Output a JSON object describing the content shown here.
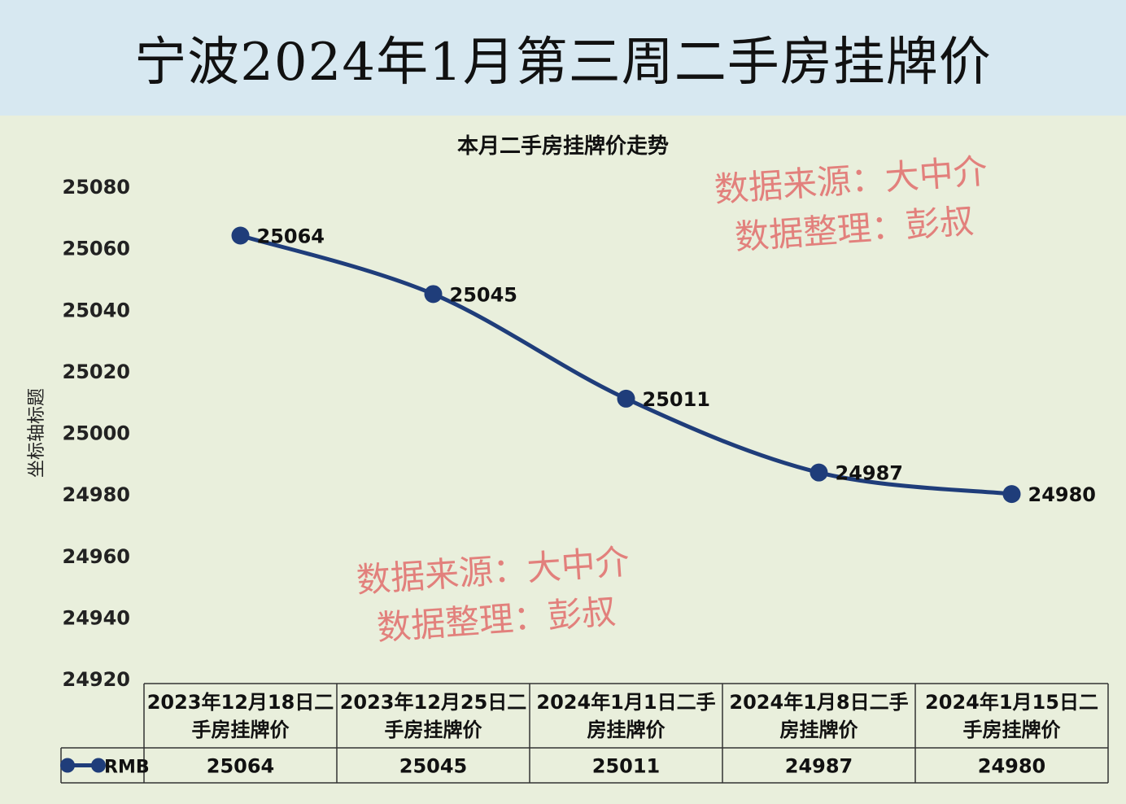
{
  "header": {
    "title": "宁波2024年1月第三周二手房挂牌价",
    "background": "#d7e8f1"
  },
  "watermarks": [
    {
      "line1": "数据来源：大中介",
      "line2": "数据整理：彭叔"
    },
    {
      "line1": "数据来源：大中介",
      "line2": "数据整理：彭叔"
    }
  ],
  "colors": {
    "line": "#1f3d7a",
    "chart_background": "#e9efdc",
    "watermark": "#e2807c"
  },
  "chart_data": {
    "type": "line",
    "title": "本月二手房挂牌价走势",
    "ylabel": "坐标轴标题",
    "xlabel": "",
    "ylim": [
      24920,
      25080
    ],
    "yticks": [
      25080,
      25060,
      25040,
      25020,
      25000,
      24980,
      24960,
      24940,
      24920
    ],
    "smooth": true,
    "grid": false,
    "categories": [
      [
        "2023年12月18日二",
        "手房挂牌价"
      ],
      [
        "2023年12月25日二",
        "手房挂牌价"
      ],
      [
        "2024年1月1日二手",
        "房挂牌价"
      ],
      [
        "2024年1月8日二手",
        "房挂牌价"
      ],
      [
        "2024年1月15日二",
        "手房挂牌价"
      ]
    ],
    "series": [
      {
        "name": "RMB",
        "values": [
          25064,
          25045,
          25011,
          24987,
          24980
        ],
        "color": "#1f3d7a"
      }
    ],
    "data_table": true
  }
}
